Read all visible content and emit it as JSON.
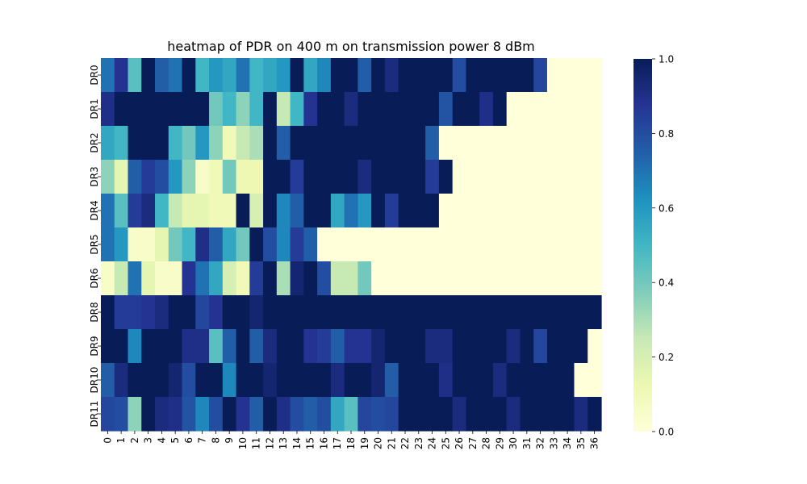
{
  "chart_data": {
    "type": "heatmap",
    "title": "heatmap of PDR on 400 m on transmission power 8 dBm",
    "xlabel": "",
    "ylabel": "",
    "x_categories": [
      "0",
      "1",
      "2",
      "3",
      "4",
      "5",
      "6",
      "7",
      "8",
      "9",
      "10",
      "11",
      "12",
      "13",
      "14",
      "15",
      "16",
      "17",
      "18",
      "19",
      "20",
      "21",
      "22",
      "23",
      "24",
      "25",
      "26",
      "27",
      "28",
      "29",
      "30",
      "31",
      "32",
      "33",
      "34",
      "35",
      "36"
    ],
    "y_categories": [
      "DR0",
      "DR1",
      "DR2",
      "DR3",
      "DR4",
      "DR5",
      "DR6",
      "DR8",
      "DR9",
      "DR10",
      "DR11"
    ],
    "colorbar": {
      "min": 0.0,
      "max": 1.0,
      "tick_values": [
        0.0,
        0.2,
        0.4,
        0.6,
        0.8,
        1.0
      ],
      "tick_labels": [
        "0.0",
        "0.2",
        "0.4",
        "0.6",
        "0.8",
        "1.0"
      ],
      "colormap": "YlGnBu"
    },
    "values": [
      [
        0.7,
        0.88,
        0.45,
        1.0,
        0.75,
        0.7,
        1.0,
        0.5,
        0.6,
        0.55,
        0.7,
        0.5,
        0.55,
        0.6,
        1.0,
        0.55,
        0.65,
        1.0,
        1.0,
        0.75,
        1.0,
        0.92,
        1.0,
        1.0,
        1.0,
        1.0,
        0.8,
        1.0,
        1.0,
        1.0,
        1.0,
        1.0,
        0.82,
        0.0,
        0.0,
        0.0,
        0.0
      ],
      [
        0.9,
        1.0,
        1.0,
        1.0,
        1.0,
        1.0,
        1.0,
        1.0,
        0.4,
        0.5,
        0.35,
        0.5,
        1.0,
        0.25,
        0.5,
        0.88,
        1.0,
        1.0,
        0.92,
        1.0,
        1.0,
        1.0,
        1.0,
        1.0,
        1.0,
        0.78,
        1.0,
        1.0,
        0.9,
        1.0,
        0.0,
        0.0,
        0.0,
        0.0,
        0.0,
        0.0,
        0.0
      ],
      [
        0.55,
        0.5,
        1.0,
        1.0,
        1.0,
        0.5,
        0.4,
        0.6,
        0.35,
        0.1,
        0.25,
        0.3,
        1.0,
        0.75,
        1.0,
        1.0,
        1.0,
        1.0,
        1.0,
        1.0,
        1.0,
        1.0,
        1.0,
        1.0,
        0.75,
        0.0,
        0.0,
        0.0,
        0.0,
        0.0,
        0.0,
        0.0,
        0.0,
        0.0,
        0.0,
        0.0,
        0.0
      ],
      [
        0.35,
        0.15,
        0.75,
        0.85,
        0.8,
        0.6,
        0.35,
        0.05,
        0.1,
        0.4,
        0.12,
        0.12,
        1.0,
        1.0,
        0.85,
        1.0,
        1.0,
        1.0,
        1.0,
        0.92,
        1.0,
        1.0,
        1.0,
        1.0,
        0.85,
        1.0,
        0.0,
        0.0,
        0.0,
        0.0,
        0.0,
        0.0,
        0.0,
        0.0,
        0.0,
        0.0,
        0.0
      ],
      [
        0.7,
        0.45,
        0.85,
        0.92,
        0.5,
        0.25,
        0.15,
        0.15,
        0.1,
        0.1,
        1.0,
        0.2,
        1.0,
        0.65,
        0.75,
        1.0,
        1.0,
        0.55,
        0.7,
        0.6,
        1.0,
        0.85,
        1.0,
        1.0,
        1.0,
        0.0,
        0.0,
        0.0,
        0.0,
        0.0,
        0.0,
        0.0,
        0.0,
        0.0,
        0.0,
        0.0,
        0.0
      ],
      [
        0.7,
        0.6,
        0.05,
        0.05,
        0.15,
        0.4,
        0.5,
        0.9,
        0.75,
        0.55,
        0.4,
        1.0,
        0.8,
        0.65,
        0.85,
        0.75,
        0.0,
        0.0,
        0.0,
        0.0,
        0.0,
        0.0,
        0.0,
        0.0,
        0.0,
        0.0,
        0.0,
        0.0,
        0.0,
        0.0,
        0.0,
        0.0,
        0.0,
        0.0,
        0.0,
        0.0,
        0.0
      ],
      [
        0.05,
        0.25,
        0.7,
        0.15,
        0.05,
        0.05,
        0.88,
        0.7,
        0.55,
        0.2,
        0.1,
        0.85,
        1.0,
        0.3,
        0.95,
        1.0,
        0.8,
        0.25,
        0.25,
        0.4,
        0.0,
        0.0,
        0.0,
        0.0,
        0.0,
        0.0,
        0.0,
        0.0,
        0.0,
        0.0,
        0.0,
        0.0,
        0.0,
        0.0,
        0.0,
        0.0,
        0.0
      ],
      [
        1.0,
        0.85,
        0.85,
        0.88,
        0.92,
        1.0,
        1.0,
        0.82,
        0.88,
        1.0,
        1.0,
        0.95,
        1.0,
        1.0,
        1.0,
        1.0,
        1.0,
        1.0,
        1.0,
        1.0,
        1.0,
        1.0,
        1.0,
        1.0,
        1.0,
        1.0,
        1.0,
        1.0,
        1.0,
        1.0,
        1.0,
        1.0,
        1.0,
        1.0,
        1.0,
        1.0,
        1.0
      ],
      [
        1.0,
        1.0,
        0.65,
        1.0,
        1.0,
        1.0,
        0.9,
        0.9,
        0.45,
        0.75,
        1.0,
        0.75,
        0.92,
        1.0,
        1.0,
        0.88,
        0.85,
        0.75,
        0.88,
        0.88,
        0.95,
        1.0,
        1.0,
        1.0,
        0.92,
        0.92,
        1.0,
        1.0,
        1.0,
        1.0,
        0.92,
        1.0,
        0.82,
        1.0,
        1.0,
        1.0,
        0.0
      ],
      [
        0.75,
        0.92,
        1.0,
        1.0,
        1.0,
        0.95,
        0.8,
        1.0,
        1.0,
        0.65,
        1.0,
        1.0,
        0.95,
        1.0,
        1.0,
        1.0,
        1.0,
        0.92,
        1.0,
        1.0,
        0.95,
        0.75,
        1.0,
        1.0,
        1.0,
        0.9,
        1.0,
        1.0,
        1.0,
        0.92,
        1.0,
        1.0,
        1.0,
        1.0,
        1.0,
        0.0,
        0.0
      ],
      [
        0.82,
        0.8,
        0.35,
        1.0,
        0.92,
        0.9,
        0.78,
        0.65,
        0.8,
        1.0,
        0.88,
        0.75,
        1.0,
        0.9,
        0.8,
        0.75,
        0.8,
        0.55,
        0.45,
        0.82,
        0.8,
        0.82,
        1.0,
        1.0,
        1.0,
        1.0,
        0.92,
        1.0,
        1.0,
        1.0,
        0.92,
        1.0,
        1.0,
        1.0,
        1.0,
        0.92,
        1.0
      ]
    ]
  }
}
